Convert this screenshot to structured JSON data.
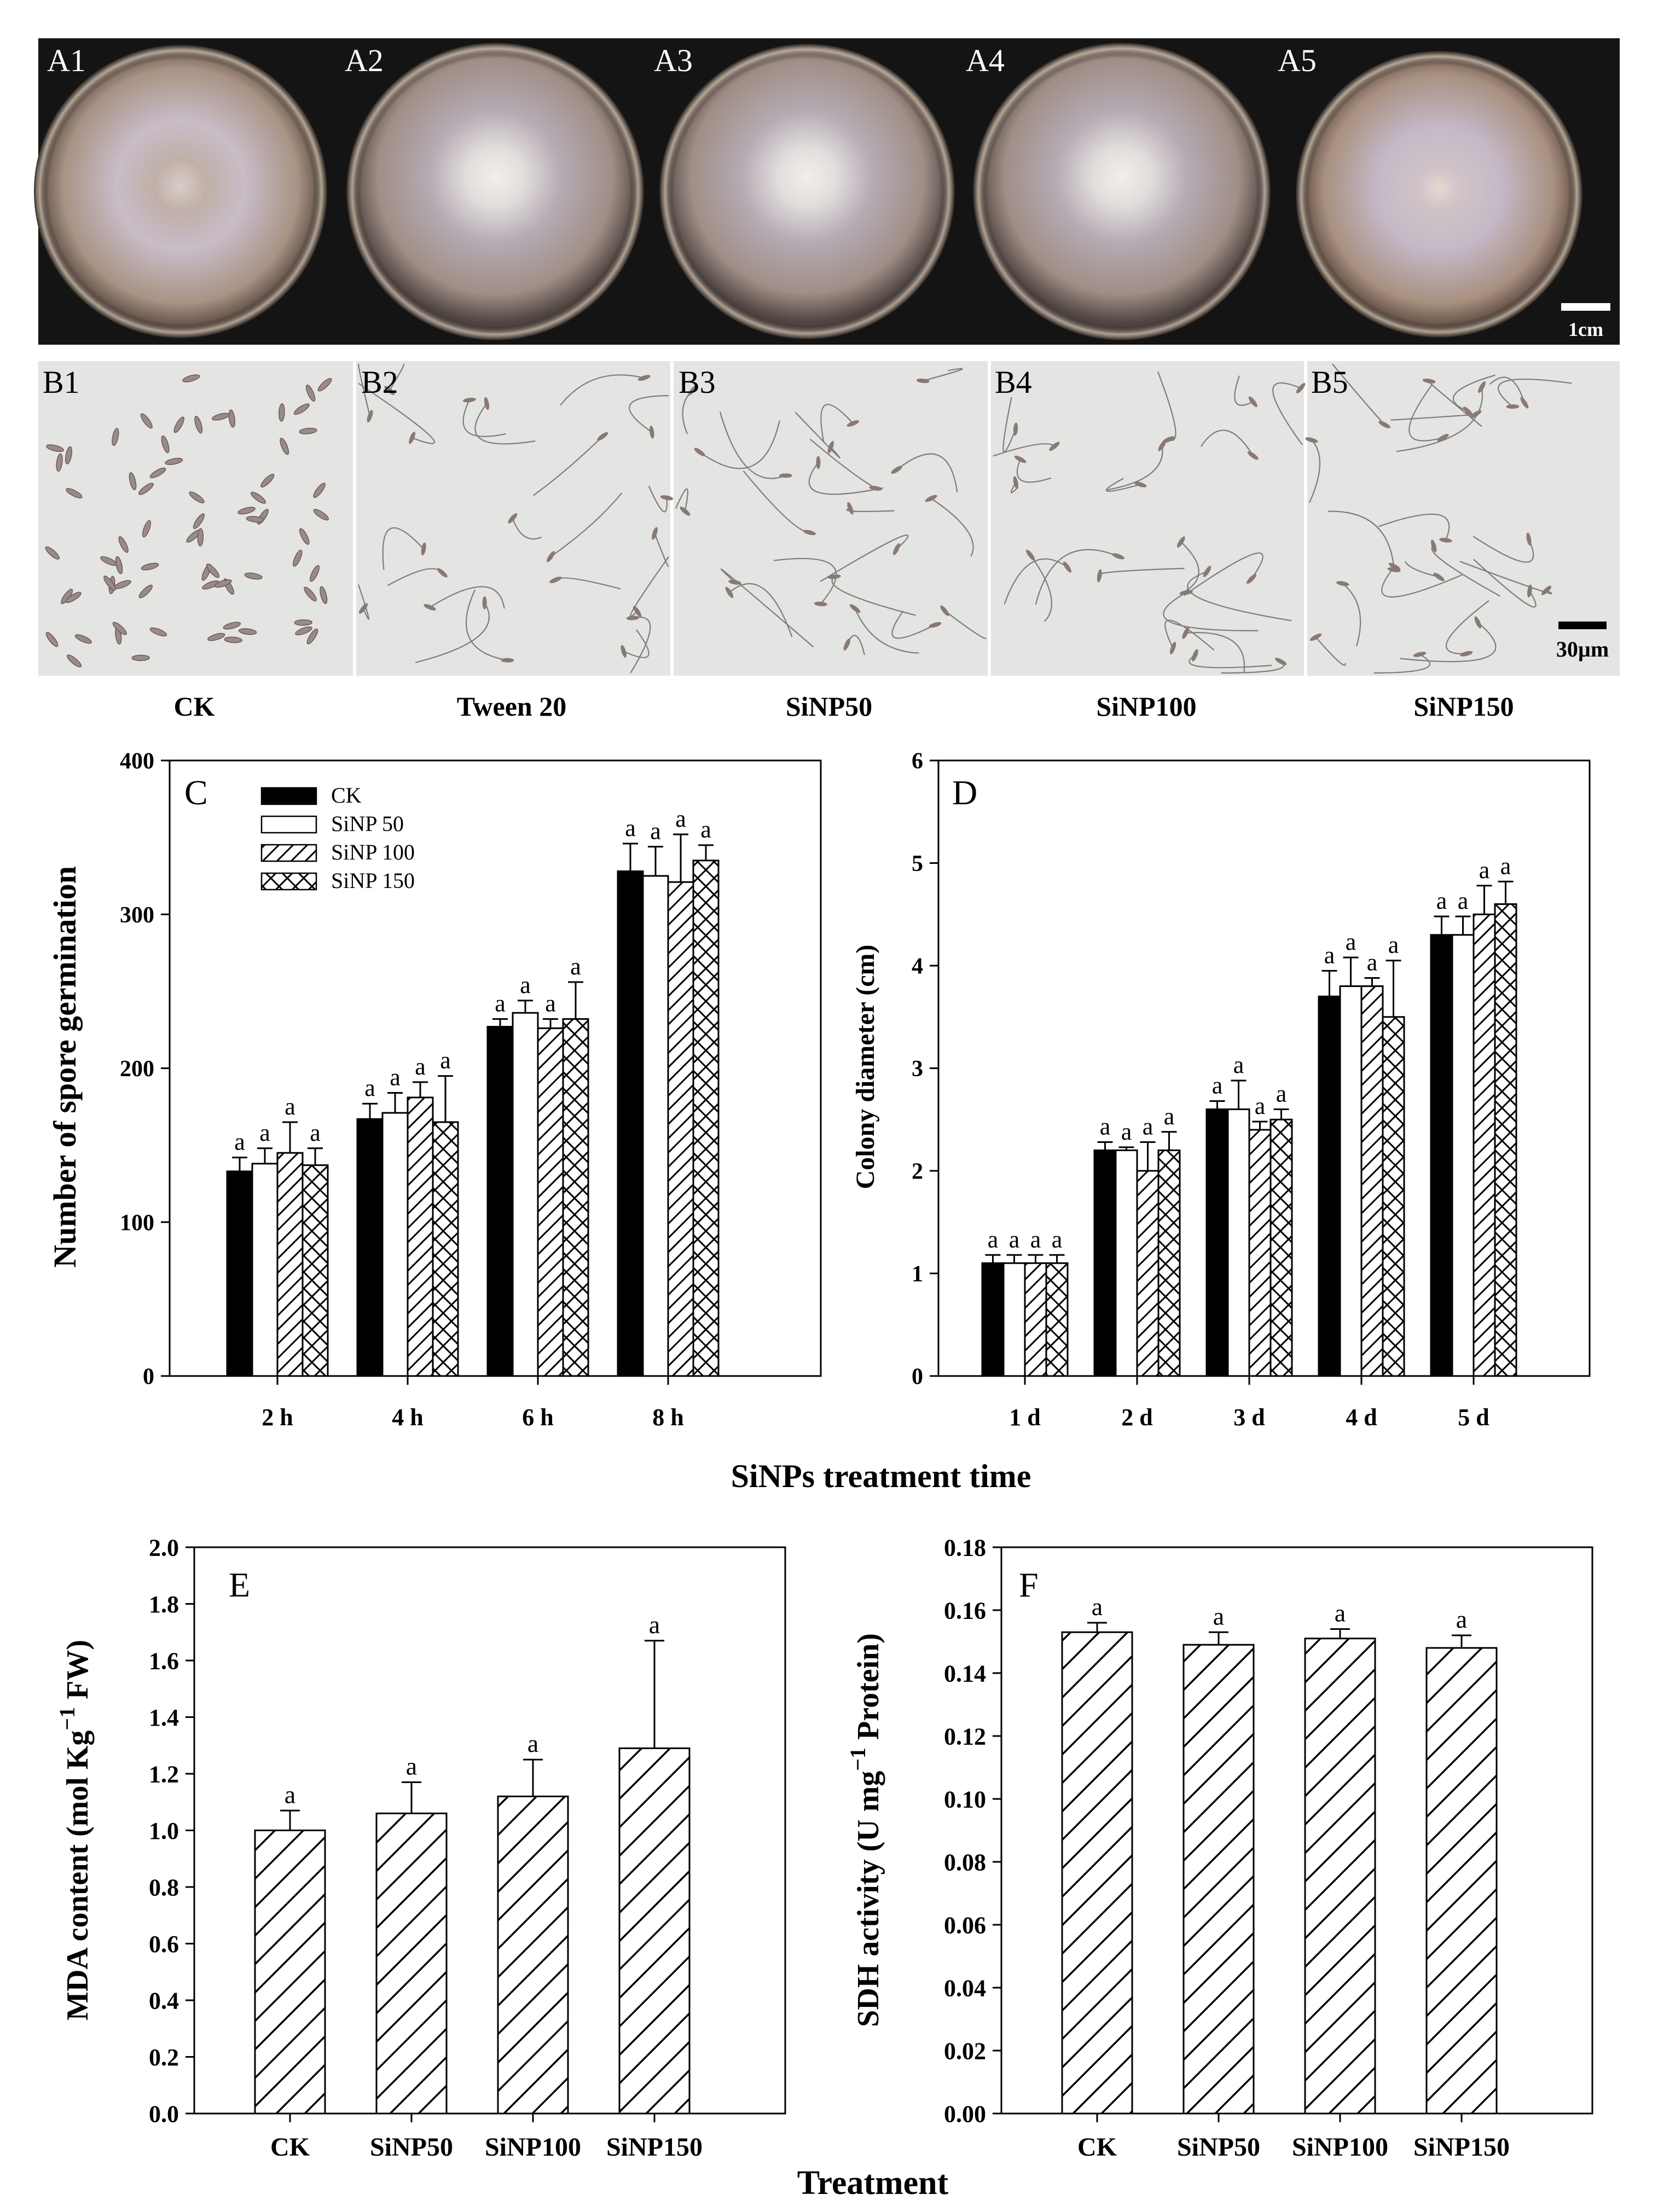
{
  "row_a": {
    "panel_labels": [
      "A1",
      "A2",
      "A3",
      "A4",
      "A5"
    ],
    "scale_bar": "1cm"
  },
  "row_b": {
    "panel_labels": [
      "B1",
      "B2",
      "B3",
      "B4",
      "B5"
    ],
    "captions": [
      "CK",
      "Tween 20",
      "SiNP50",
      "SiNP100",
      "SiNP150"
    ],
    "scale_bar": "30µm"
  },
  "shared_xlabel_top": "SiNPs treatment time",
  "shared_xlabel_bottom": "Treatment",
  "legend": [
    "CK",
    "SiNP 50",
    "SiNP 100",
    "SiNP 150"
  ],
  "colors": {
    "ink": "#000000",
    "background": "#ffffff",
    "photo_dark": "#141414",
    "agar": "#b9a89a",
    "microscope": "#e4e4e2"
  },
  "chart_data": [
    {
      "panel": "C",
      "type": "bar",
      "ylabel": "Number of spore germination",
      "xlabel": "SiNPs treatment time",
      "categories": [
        "2 h",
        "4 h",
        "6 h",
        "8 h"
      ],
      "ylim": [
        0,
        400
      ],
      "yticks": [
        "0",
        "100",
        "200",
        "300",
        "400"
      ],
      "series": [
        {
          "name": "CK",
          "pattern": "solid",
          "values": [
            133,
            167,
            227,
            328
          ],
          "errors": [
            9,
            10,
            5,
            18
          ],
          "letters": [
            "a",
            "a",
            "a",
            "a"
          ]
        },
        {
          "name": "SiNP 50",
          "pattern": "open",
          "values": [
            138,
            171,
            236,
            325
          ],
          "errors": [
            10,
            13,
            8,
            19
          ],
          "letters": [
            "a",
            "a",
            "a",
            "a"
          ]
        },
        {
          "name": "SiNP 100",
          "pattern": "hatch",
          "values": [
            145,
            181,
            226,
            321
          ],
          "errors": [
            20,
            10,
            6,
            31
          ],
          "letters": [
            "a",
            "a",
            "a",
            "a"
          ]
        },
        {
          "name": "SiNP 150",
          "pattern": "cross",
          "values": [
            137,
            165,
            232,
            335
          ],
          "errors": [
            11,
            30,
            24,
            10
          ],
          "letters": [
            "a",
            "a",
            "a",
            "a"
          ]
        }
      ]
    },
    {
      "panel": "D",
      "type": "bar",
      "ylabel": "Colony diameter (cm)",
      "xlabel": "SiNPs treatment time",
      "categories": [
        "1 d",
        "2 d",
        "3 d",
        "4 d",
        "5 d"
      ],
      "ylim": [
        0,
        6
      ],
      "yticks": [
        "0",
        "1",
        "2",
        "3",
        "4",
        "5",
        "6"
      ],
      "series": [
        {
          "name": "CK",
          "pattern": "solid",
          "values": [
            1.1,
            2.2,
            2.6,
            3.7,
            4.3
          ],
          "errors": [
            0.08,
            0.08,
            0.08,
            0.25,
            0.18
          ],
          "letters": [
            "a",
            "a",
            "a",
            "a",
            "a"
          ]
        },
        {
          "name": "SiNP 50",
          "pattern": "open",
          "values": [
            1.1,
            2.2,
            2.6,
            3.8,
            4.3
          ],
          "errors": [
            0.08,
            0.03,
            0.28,
            0.28,
            0.18
          ],
          "letters": [
            "a",
            "a",
            "a",
            "a",
            "a"
          ]
        },
        {
          "name": "SiNP 100",
          "pattern": "hatch",
          "values": [
            1.1,
            2.0,
            2.4,
            3.8,
            4.5
          ],
          "errors": [
            0.08,
            0.28,
            0.08,
            0.08,
            0.28
          ],
          "letters": [
            "a",
            "a",
            "a",
            "a",
            "a"
          ]
        },
        {
          "name": "SiNP 150",
          "pattern": "cross",
          "values": [
            1.1,
            2.2,
            2.5,
            3.5,
            4.6
          ],
          "errors": [
            0.08,
            0.18,
            0.1,
            0.55,
            0.22
          ],
          "letters": [
            "a",
            "a",
            "a",
            "a",
            "a"
          ]
        }
      ]
    },
    {
      "panel": "E",
      "type": "bar",
      "ylabel": "MDA content (mol Kg",
      "ylabel_sup": "−1",
      "ylabel_tail": " FW)",
      "xlabel": "Treatment",
      "categories": [
        "CK",
        "SiNP50",
        "SiNP100",
        "SiNP150"
      ],
      "ylim": [
        0,
        2.0
      ],
      "yticks": [
        "0.0",
        "0.2",
        "0.4",
        "0.6",
        "0.8",
        "1.0",
        "1.2",
        "1.4",
        "1.6",
        "1.8",
        "2.0"
      ],
      "series": [
        {
          "name": "Treatment",
          "pattern": "hatch",
          "values": [
            1.0,
            1.06,
            1.12,
            1.29
          ],
          "errors": [
            0.07,
            0.11,
            0.13,
            0.38
          ],
          "letters": [
            "a",
            "a",
            "a",
            "a"
          ]
        }
      ]
    },
    {
      "panel": "F",
      "type": "bar",
      "ylabel": "SDH activity (U mg",
      "ylabel_sup": "−1",
      "ylabel_tail": " Protein)",
      "xlabel": "Treatment",
      "categories": [
        "CK",
        "SiNP50",
        "SiNP100",
        "SiNP150"
      ],
      "ylim": [
        0,
        0.18
      ],
      "yticks": [
        "0.00",
        "0.02",
        "0.04",
        "0.06",
        "0.08",
        "0.10",
        "0.12",
        "0.14",
        "0.16",
        "0.18"
      ],
      "series": [
        {
          "name": "Treatment",
          "pattern": "hatch",
          "values": [
            0.153,
            0.149,
            0.151,
            0.148
          ],
          "errors": [
            0.003,
            0.004,
            0.003,
            0.004
          ],
          "letters": [
            "a",
            "a",
            "a",
            "a"
          ]
        }
      ]
    }
  ]
}
